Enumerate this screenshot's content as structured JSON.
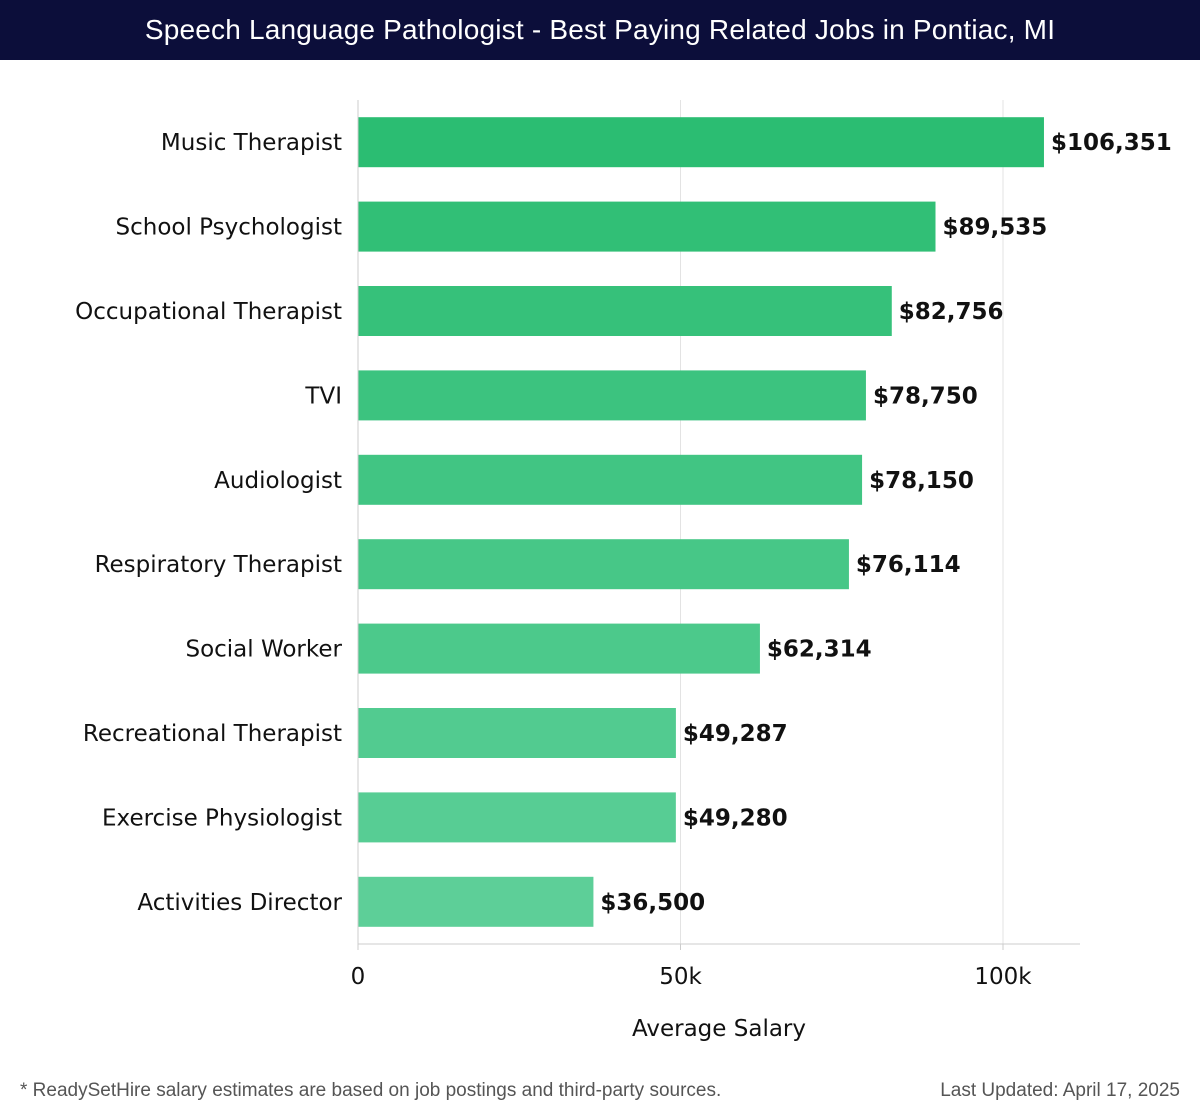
{
  "header": {
    "title": "Speech Language Pathologist - Best Paying Related Jobs in Pontiac, MI"
  },
  "chart_data": {
    "type": "bar",
    "orientation": "horizontal",
    "categories": [
      "Music Therapist",
      "School Psychologist",
      "Occupational Therapist",
      "TVI",
      "Audiologist",
      "Respiratory Therapist",
      "Social Worker",
      "Recreational Therapist",
      "Exercise Physiologist",
      "Activities Director"
    ],
    "values": [
      106351,
      89535,
      82756,
      78750,
      78150,
      76114,
      62314,
      49287,
      49280,
      36500
    ],
    "value_labels": [
      "$106,351",
      "$89,535",
      "$82,756",
      "$78,750",
      "$78,150",
      "$76,114",
      "$62,314",
      "$49,287",
      "$49,280",
      "$36,500"
    ],
    "xlabel": "Average Salary",
    "ylabel": "",
    "xlim": [
      0,
      112000
    ],
    "xticks": [
      0,
      50000,
      100000
    ],
    "xtick_labels": [
      "0",
      "50k",
      "100k"
    ],
    "grid": true,
    "colors": {
      "bar_top": "#2bbd72",
      "bar_bottom": "#5dcf98",
      "grid": "#e3e3e3",
      "axis": "#cccccc"
    }
  },
  "footer": {
    "note": "* ReadySetHire salary estimates are based on job postings and third-party sources.",
    "updated": "Last Updated: April 17, 2025"
  }
}
